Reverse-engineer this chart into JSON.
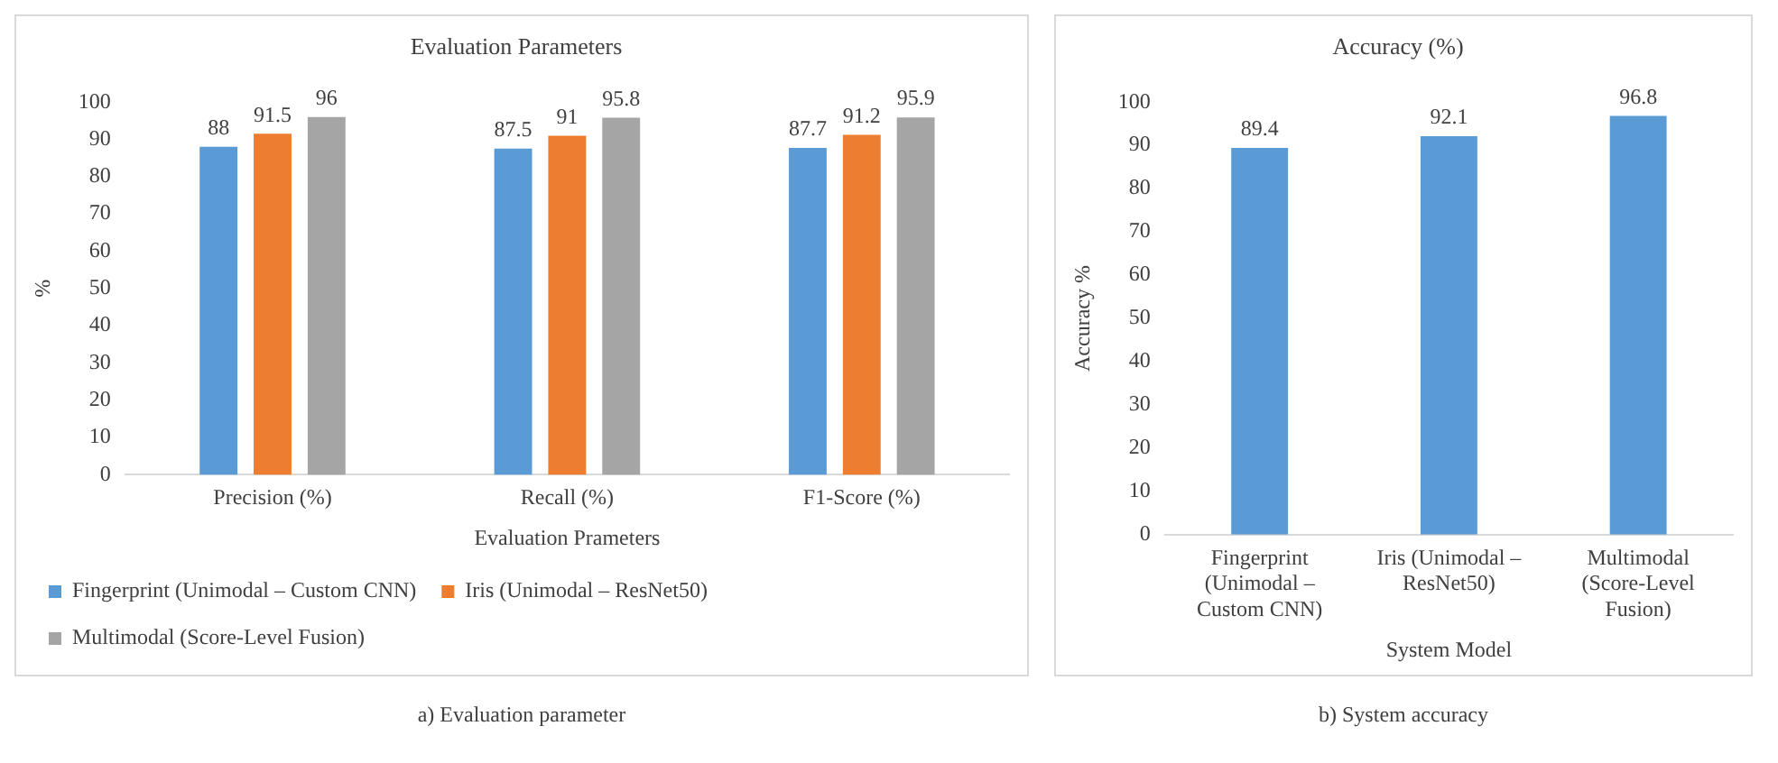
{
  "chart_data": [
    {
      "type": "bar",
      "title": "Evaluation Parameters",
      "xlabel": "Evaluation Prameters",
      "ylabel": "%",
      "categories": [
        "Precision (%)",
        "Recall (%)",
        "F1-Score (%)"
      ],
      "series": [
        {
          "name": "Fingerprint (Unimodal – Custom CNN)",
          "color": "#5b9bd5",
          "values": [
            88,
            87.5,
            87.7
          ]
        },
        {
          "name": "Iris (Unimodal – ResNet50)",
          "color": "#ed7d31",
          "values": [
            91.5,
            91,
            91.2
          ]
        },
        {
          "name": "Multimodal (Score-Level Fusion)",
          "color": "#a5a5a5",
          "values": [
            96,
            95.8,
            95.9
          ]
        }
      ],
      "ylim": [
        0,
        100
      ],
      "yticks": [
        0,
        10,
        20,
        30,
        40,
        50,
        60,
        70,
        80,
        90,
        100
      ],
      "grid": false,
      "legend": "bottom",
      "data_labels": true,
      "annotations": [
        "a) Evaluation parameter"
      ]
    },
    {
      "type": "bar",
      "title": "Accuracy (%)",
      "xlabel": "System Model",
      "ylabel": "Accuracy %",
      "categories": [
        "Fingerprint (Unimodal – Custom CNN)",
        "Iris (Unimodal – ResNet50)",
        "Multimodal (Score-Level Fusion)"
      ],
      "values": [
        89.4,
        92.1,
        96.8
      ],
      "color": "#5b9bd5",
      "ylim": [
        0,
        100
      ],
      "yticks": [
        0,
        10,
        20,
        30,
        40,
        50,
        60,
        70,
        80,
        90,
        100
      ],
      "grid": false,
      "data_labels": true,
      "annotations": [
        "b) System accuracy"
      ]
    }
  ]
}
